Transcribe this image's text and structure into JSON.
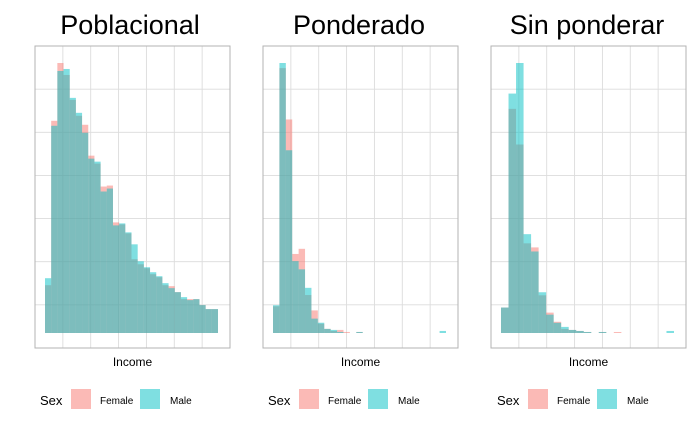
{
  "colors": {
    "female": "#f8766d",
    "male": "#00bfc4",
    "grid": "#dcdcdc",
    "frame": "#b3b3b3"
  },
  "chart_data": [
    {
      "type": "bar",
      "title": "Poblacional",
      "xlabel": "Income",
      "ylabel": "",
      "grid": true,
      "legend": {
        "title": "Sex",
        "entries": [
          "Female",
          "Male"
        ],
        "position": "bottom"
      },
      "series": [
        {
          "name": "Female",
          "values": [
            48,
            213,
            271,
            259,
            234,
            218,
            209,
            178,
            170,
            147,
            148,
            111,
            109,
            100,
            74,
            69,
            65,
            59,
            56,
            48,
            47,
            41,
            34,
            34,
            34,
            28,
            24,
            24
          ]
        },
        {
          "name": "Male",
          "values": [
            55,
            208,
            263,
            265,
            236,
            221,
            201,
            175,
            172,
            142,
            145,
            108,
            110,
            101,
            89,
            72,
            66,
            61,
            57,
            50,
            45,
            41,
            36,
            33,
            34,
            28,
            24,
            24
          ]
        }
      ]
    },
    {
      "type": "bar",
      "title": "Ponderado",
      "xlabel": "Income",
      "ylabel": "",
      "grid": true,
      "legend": {
        "title": "Sex",
        "entries": [
          "Female",
          "Male"
        ],
        "position": "bottom"
      },
      "series": [
        {
          "name": "Female",
          "values": [
            26,
            258,
            208,
            77,
            82,
            37,
            22,
            9,
            4,
            2,
            3,
            1,
            0,
            1,
            0,
            0,
            0,
            0,
            0,
            0,
            0,
            0,
            0,
            0,
            0,
            0,
            0
          ]
        },
        {
          "name": "Male",
          "values": [
            27,
            263,
            178,
            70,
            62,
            44,
            14,
            10,
            4,
            3,
            1,
            0,
            0,
            1,
            0,
            0,
            0,
            0,
            0,
            0,
            0,
            0,
            0,
            0,
            0,
            0,
            2
          ]
        }
      ]
    },
    {
      "type": "bar",
      "title": "Sin ponderar",
      "xlabel": "Income",
      "ylabel": "",
      "grid": true,
      "legend": {
        "title": "Sex",
        "entries": [
          "Female",
          "Male"
        ],
        "position": "bottom"
      },
      "series": [
        {
          "name": "Female",
          "values": [
            25,
            220,
            185,
            88,
            84,
            37,
            20,
            11,
            4,
            3,
            2,
            1,
            0,
            1,
            0,
            1,
            0,
            0,
            0,
            0,
            0,
            0,
            0
          ]
        },
        {
          "name": "Male",
          "values": [
            25,
            235,
            265,
            97,
            80,
            40,
            18,
            10,
            6,
            3,
            2,
            1,
            0,
            1,
            0,
            0,
            0,
            0,
            0,
            0,
            0,
            0,
            2
          ]
        }
      ]
    }
  ]
}
